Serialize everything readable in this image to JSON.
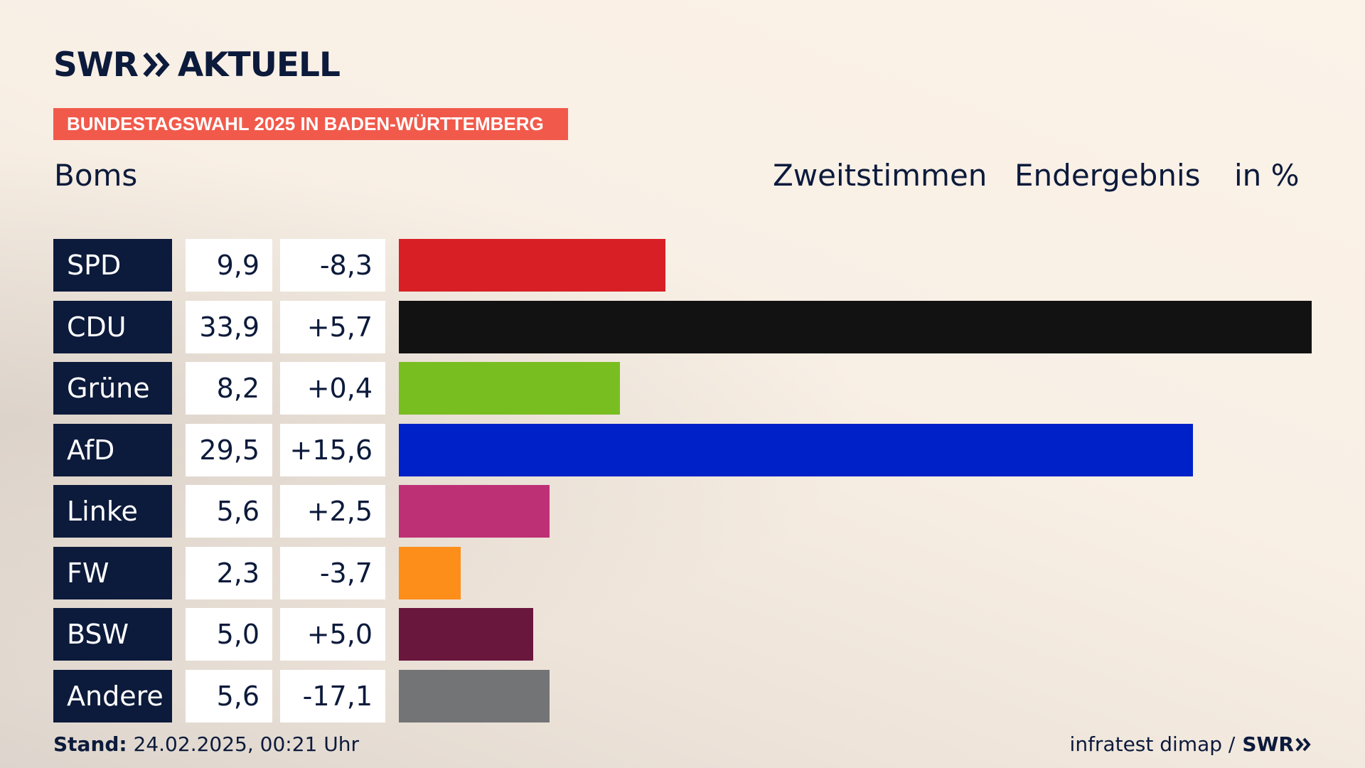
{
  "brand": {
    "logo_left": "SWR",
    "logo_right": "AKTUELL",
    "mini_logo": "SWR"
  },
  "header": {
    "band": "BUNDESTAGSWAHL 2025 IN BADEN-WÜRTTEMBERG",
    "place": "Boms",
    "vote_type": "Zweitstimmen",
    "result_type": "Endergebnis",
    "unit": "in %"
  },
  "footer": {
    "stand_label": "Stand:",
    "stand_value": "24.02.2025, 00:21 Uhr",
    "source": "infratest dimap /"
  },
  "colors": {
    "navy": "#0c1a3b",
    "band": "#f15a4b"
  },
  "chart_data": {
    "type": "bar",
    "orientation": "horizontal",
    "categories": [
      "SPD",
      "CDU",
      "Grüne",
      "AfD",
      "Linke",
      "FW",
      "BSW",
      "Andere"
    ],
    "values_label": [
      "9,9",
      "33,9",
      "8,2",
      "29,5",
      "5,6",
      "2,3",
      "5,0",
      "5,6"
    ],
    "diff_label": [
      "-8,3",
      "+5,7",
      "+0,4",
      "+15,6",
      "+2,5",
      "-3,7",
      "+5,0",
      "-17,1"
    ],
    "values": [
      9.9,
      33.9,
      8.2,
      29.5,
      5.6,
      2.3,
      5.0,
      5.6
    ],
    "diffs": [
      -8.3,
      5.7,
      0.4,
      15.6,
      2.5,
      -3.7,
      5.0,
      -17.1
    ],
    "colors": [
      "#d81f25",
      "#121212",
      "#78be20",
      "#0021c8",
      "#be3075",
      "#fc8e19",
      "#6a173e",
      "#737476"
    ],
    "xlim": [
      0,
      33.9
    ],
    "grid": false
  }
}
